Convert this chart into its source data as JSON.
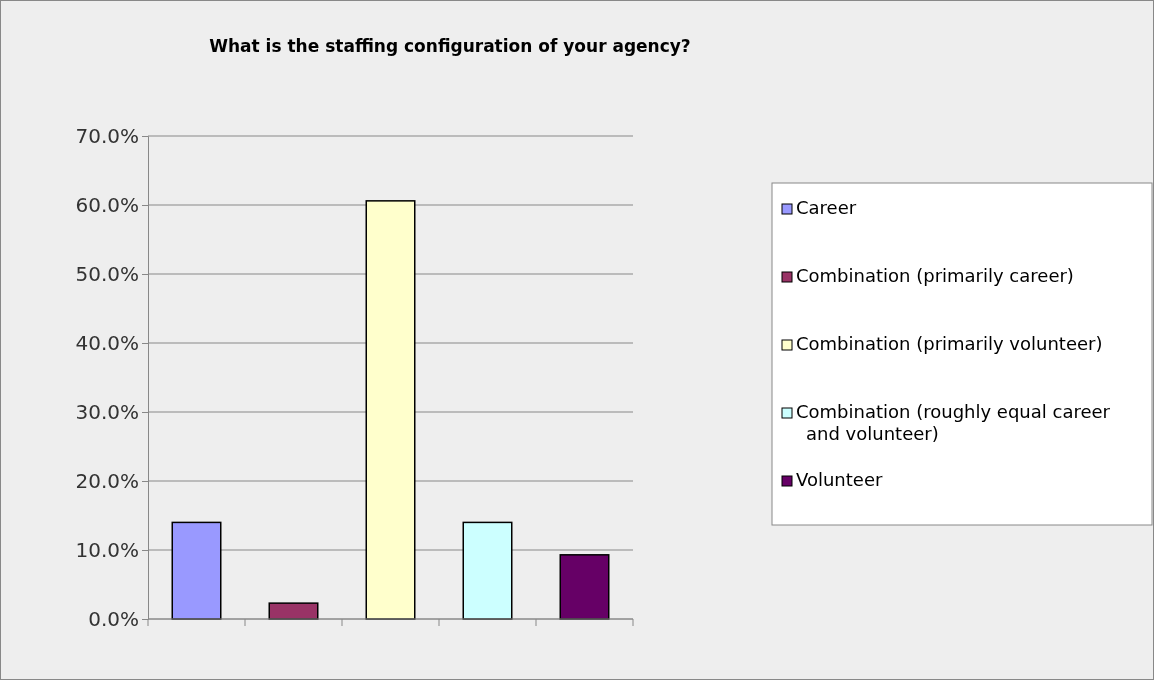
{
  "chart_data": {
    "type": "bar",
    "title": "What is the staffing configuration of your agency?",
    "categories": [
      null,
      null,
      null,
      null,
      null
    ],
    "series": [
      {
        "name": "Career",
        "color": "#9999ff",
        "values": [
          14.0,
          null,
          null,
          null,
          null
        ]
      },
      {
        "name": "Combination (primarily career)",
        "color": "#993366",
        "values": [
          null,
          2.3,
          null,
          null,
          null
        ]
      },
      {
        "name": "Combination (primarily volunteer)",
        "color": "#ffffcc",
        "values": [
          null,
          null,
          60.6,
          null,
          null
        ]
      },
      {
        "name": "Combination (roughly equal career and volunteer)",
        "color": "#ccffff",
        "values": [
          null,
          null,
          null,
          14.0,
          null
        ]
      },
      {
        "name": "Volunteer",
        "color": "#660066",
        "values": [
          null,
          null,
          null,
          null,
          9.3
        ]
      }
    ],
    "ylim": [
      0,
      70
    ],
    "yticks": [
      {
        "value": 0,
        "label": "0.0%"
      },
      {
        "value": 10,
        "label": "10.0%"
      },
      {
        "value": 20,
        "label": "20.0%"
      },
      {
        "value": 30,
        "label": "30.0%"
      },
      {
        "value": 40,
        "label": "40.0%"
      },
      {
        "value": 50,
        "label": "50.0%"
      },
      {
        "value": 60,
        "label": "60.0%"
      },
      {
        "value": 70,
        "label": "70.0%"
      }
    ],
    "grid": "y",
    "legend": "right",
    "tick_labels": "y"
  }
}
